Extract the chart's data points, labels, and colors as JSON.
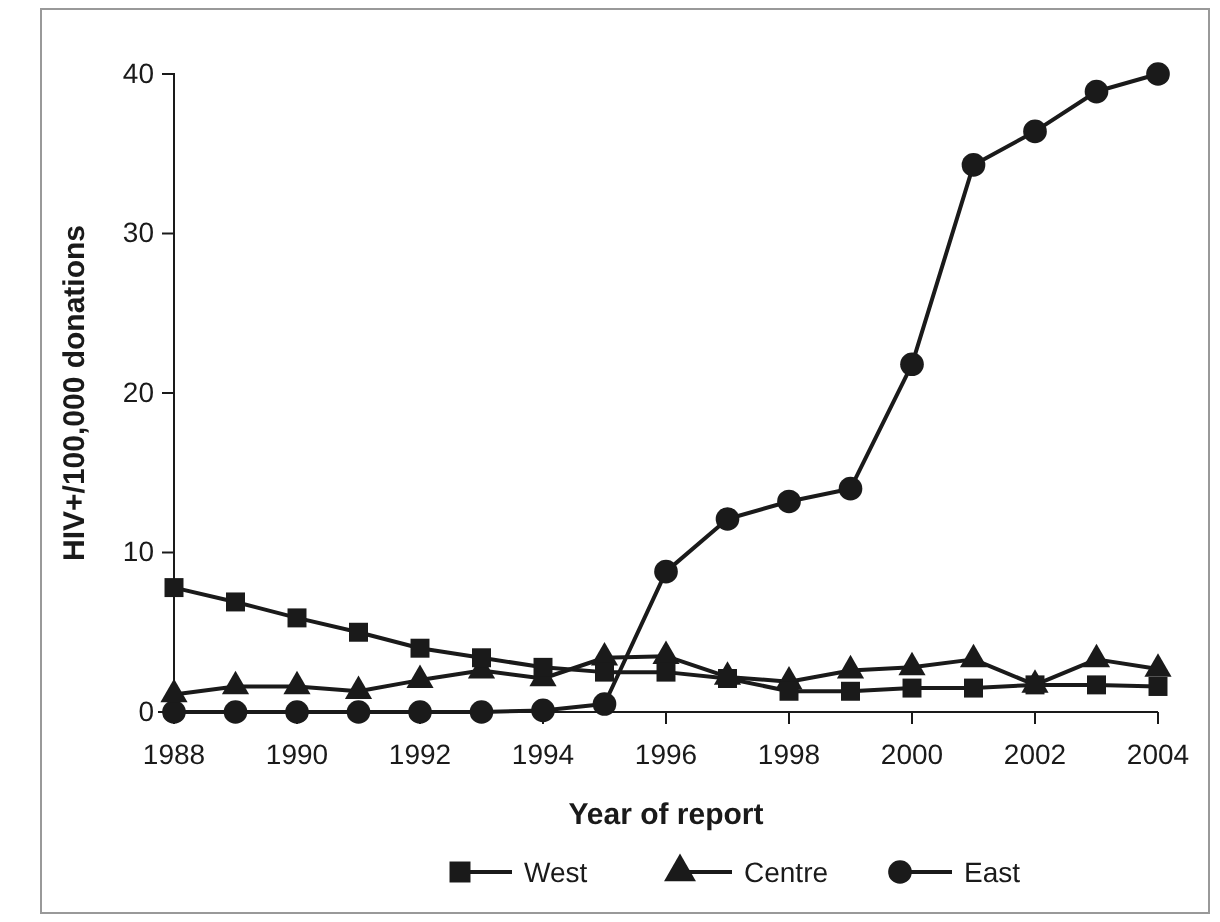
{
  "chart_data": {
    "type": "line",
    "xlabel": "Year of report",
    "ylabel": "HIV+/100,000 donations",
    "x": [
      1988,
      1989,
      1990,
      1991,
      1992,
      1993,
      1994,
      1995,
      1996,
      1997,
      1998,
      1999,
      2000,
      2001,
      2002,
      2003,
      2004
    ],
    "xlim": [
      1988,
      2004
    ],
    "xticks": [
      1988,
      1990,
      1992,
      1994,
      1996,
      1998,
      2000,
      2002,
      2004
    ],
    "ylim": [
      0,
      40
    ],
    "yticks": [
      0,
      10,
      20,
      30,
      40
    ],
    "grid": false,
    "legend": "bottom",
    "line_style": "solid",
    "series": [
      {
        "name": "West",
        "color": "#1a1a1a",
        "marker": "square",
        "values": [
          7.8,
          6.9,
          5.9,
          5.0,
          4.0,
          3.4,
          2.8,
          2.5,
          2.5,
          2.1,
          1.3,
          1.3,
          1.5,
          1.5,
          1.7,
          1.7,
          1.6
        ]
      },
      {
        "name": "Centre",
        "color": "#1a1a1a",
        "marker": "triangle",
        "values": [
          1.1,
          1.6,
          1.6,
          1.3,
          2.0,
          2.6,
          2.1,
          3.4,
          3.5,
          2.2,
          1.9,
          2.6,
          2.8,
          3.3,
          1.7,
          3.3,
          2.7
        ]
      },
      {
        "name": "East",
        "color": "#1a1a1a",
        "marker": "circle",
        "values": [
          0,
          0,
          0,
          0,
          0,
          0,
          0.1,
          0.5,
          8.8,
          12.1,
          13.2,
          14.0,
          21.8,
          34.3,
          36.4,
          38.9,
          40.0
        ]
      }
    ]
  }
}
